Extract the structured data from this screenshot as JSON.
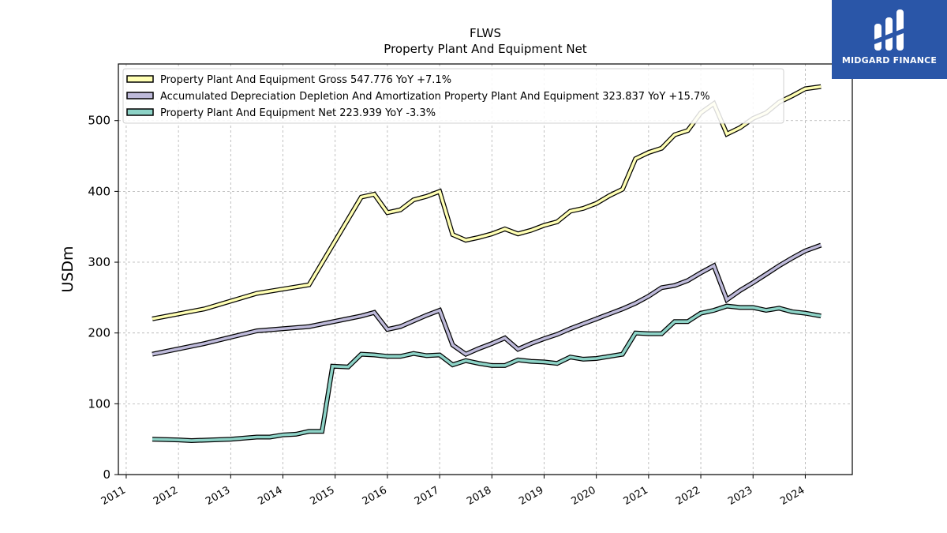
{
  "chart_data": {
    "type": "line",
    "title": "FLWS",
    "subtitle": "Property Plant And Equipment Net",
    "ylabel": "USDm",
    "xlabel": "",
    "ylim": [
      0,
      580
    ],
    "xlim": [
      2010.85,
      2024.9
    ],
    "yticks": [
      0,
      100,
      200,
      300,
      400,
      500
    ],
    "xticks": [
      "2011",
      "2012",
      "2013",
      "2014",
      "2015",
      "2016",
      "2017",
      "2018",
      "2019",
      "2020",
      "2021",
      "2022",
      "2023",
      "2024"
    ],
    "grid": true,
    "legend_position": "top-left",
    "series": [
      {
        "name": "Property Plant And Equipment Gross  547.776 YoY +7.1%",
        "color": "#ffffb3",
        "x": [
          2011.5,
          2012.5,
          2013.5,
          2014.5,
          2015.5,
          2015.75,
          2016.0,
          2016.25,
          2016.5,
          2016.75,
          2017.0,
          2017.25,
          2017.5,
          2017.75,
          2018.0,
          2018.25,
          2018.5,
          2018.75,
          2019.0,
          2019.25,
          2019.5,
          2019.75,
          2020.0,
          2020.25,
          2020.5,
          2020.75,
          2021.0,
          2021.25,
          2021.5,
          2021.75,
          2022.0,
          2022.25,
          2022.5,
          2022.75,
          2023.0,
          2023.25,
          2023.5,
          2023.75,
          2024.0,
          2024.3
        ],
        "y": [
          220,
          234,
          256,
          268,
          392,
          396,
          370,
          374,
          388,
          393,
          400,
          339,
          331,
          335,
          340,
          347,
          340,
          345,
          352,
          357,
          372,
          376,
          383,
          394,
          403,
          446,
          455,
          461,
          480,
          486,
          511,
          524,
          481,
          490,
          503,
          511,
          526,
          535,
          545,
          548
        ]
      },
      {
        "name": "Accumulated Depreciation Depletion And Amortization Property Plant And Equipment  323.837 YoY +15.7%",
        "color": "#bebada",
        "x": [
          2011.5,
          2012.5,
          2013.5,
          2014.5,
          2015.5,
          2015.75,
          2016.0,
          2016.25,
          2016.5,
          2016.75,
          2017.0,
          2017.25,
          2017.5,
          2017.75,
          2018.0,
          2018.25,
          2018.5,
          2018.75,
          2019.0,
          2019.25,
          2019.5,
          2019.75,
          2020.0,
          2020.25,
          2020.5,
          2020.75,
          2021.0,
          2021.25,
          2021.5,
          2021.75,
          2022.0,
          2022.25,
          2022.5,
          2022.75,
          2023.0,
          2023.25,
          2023.5,
          2023.75,
          2024.0,
          2024.3
        ],
        "y": [
          170,
          185,
          203,
          209,
          224,
          229,
          205,
          209,
          217,
          225,
          232,
          183,
          170,
          178,
          185,
          193,
          177,
          185,
          192,
          198,
          206,
          213,
          220,
          227,
          234,
          242,
          252,
          264,
          267,
          274,
          285,
          295,
          247,
          260,
          271,
          283,
          295,
          306,
          316,
          324
        ]
      },
      {
        "name": "Property Plant And Equipment Net  223.939 YoY -3.3%",
        "color": "#8dd3c7",
        "x": [
          2011.5,
          2012.0,
          2012.25,
          2013.0,
          2013.5,
          2013.75,
          2014.0,
          2014.25,
          2014.5,
          2014.75,
          2014.95,
          2015.25,
          2015.5,
          2015.75,
          2016.0,
          2016.25,
          2016.5,
          2016.75,
          2017.0,
          2017.25,
          2017.5,
          2017.75,
          2018.0,
          2018.25,
          2018.5,
          2018.75,
          2019.0,
          2019.25,
          2019.5,
          2019.75,
          2020.0,
          2020.25,
          2020.5,
          2020.75,
          2021.0,
          2021.25,
          2021.5,
          2021.75,
          2022.0,
          2022.25,
          2022.5,
          2022.75,
          2023.0,
          2023.25,
          2023.5,
          2023.75,
          2024.0,
          2024.3
        ],
        "y": [
          50,
          49,
          48,
          50,
          53,
          53,
          56,
          57,
          61,
          61,
          153,
          152,
          170,
          169,
          167,
          167,
          171,
          168,
          169,
          155,
          161,
          157,
          154,
          154,
          162,
          160,
          159,
          157,
          166,
          163,
          164,
          167,
          170,
          200,
          199,
          199,
          216,
          216,
          228,
          232,
          238,
          236,
          236,
          232,
          235,
          230,
          228,
          224
        ]
      }
    ]
  },
  "logo": {
    "text": "MIDGARD FINANCE",
    "background": "#2a56a8"
  }
}
